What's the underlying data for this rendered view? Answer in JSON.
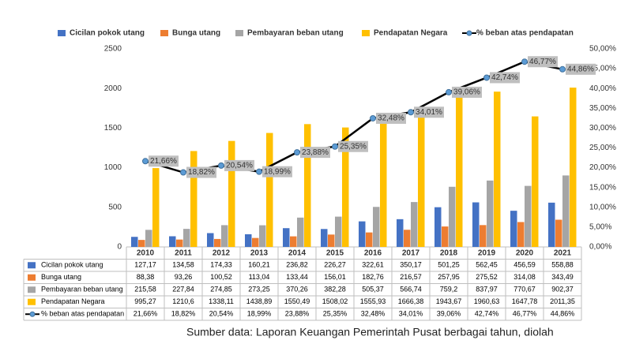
{
  "chart_data": {
    "type": "bar",
    "categories": [
      "2010",
      "2011",
      "2012",
      "2013",
      "2014",
      "2015",
      "2016",
      "2017",
      "2018",
      "2019",
      "2020",
      "2021"
    ],
    "series": [
      {
        "name": "Cicilan pokok utang",
        "color": "#4472c4",
        "values": [
          127.17,
          134.58,
          174.33,
          160.21,
          236.82,
          226.27,
          322.61,
          350.17,
          501.25,
          562.45,
          456.59,
          558.88
        ],
        "value_labels": [
          "127,17",
          "134,58",
          "174,33",
          "160,21",
          "236,82",
          "226,27",
          "322,61",
          "350,17",
          "501,25",
          "562,45",
          "456,59",
          "558,88"
        ]
      },
      {
        "name": "Bunga utang",
        "color": "#ed7d31",
        "values": [
          88.38,
          93.26,
          100.52,
          113.04,
          133.44,
          156.01,
          182.76,
          216.57,
          257.95,
          275.52,
          314.08,
          343.49
        ],
        "value_labels": [
          "88,38",
          "93,26",
          "100,52",
          "113,04",
          "133,44",
          "156,01",
          "182,76",
          "216,57",
          "257,95",
          "275,52",
          "314,08",
          "343,49"
        ]
      },
      {
        "name": "Pembayaran beban utang",
        "color": "#a5a5a5",
        "values": [
          215.58,
          227.84,
          274.85,
          273.25,
          370.26,
          382.28,
          505.37,
          566.74,
          759.2,
          837.97,
          770.67,
          902.37
        ],
        "value_labels": [
          "215,58",
          "227,84",
          "274,85",
          "273,25",
          "370,26",
          "382,28",
          "505,37",
          "566,74",
          "759,2",
          "837,97",
          "770,67",
          "902,37"
        ]
      },
      {
        "name": "Pendapatan Negara",
        "color": "#ffc000",
        "values": [
          995.27,
          1210.6,
          1338.11,
          1438.89,
          1550.49,
          1508.02,
          1555.93,
          1666.38,
          1943.67,
          1960.63,
          1647.78,
          2011.35
        ],
        "value_labels": [
          "995,27",
          "1210,6",
          "1338,11",
          "1438,89",
          "1550,49",
          "1508,02",
          "1555,93",
          "1666,38",
          "1943,67",
          "1960,63",
          "1647,78",
          "2011,35"
        ]
      },
      {
        "name": "% beban atas pendapatan",
        "type": "line",
        "axis": "y2",
        "color": "#000000",
        "marker_color": "#5b9bd5",
        "values": [
          21.66,
          18.82,
          20.54,
          18.99,
          23.88,
          25.35,
          32.48,
          34.01,
          39.06,
          42.74,
          46.77,
          44.86
        ],
        "value_labels": [
          "21,66%",
          "18,82%",
          "20,54%",
          "18,99%",
          "23,88%",
          "25,35%",
          "32,48%",
          "34,01%",
          "39,06%",
          "42,74%",
          "46,77%",
          "44,86%"
        ]
      }
    ],
    "ylim": [
      0,
      2500
    ],
    "yticks": [
      0,
      500,
      1000,
      1500,
      2000,
      2500
    ],
    "y2lim": [
      0,
      50
    ],
    "y2ticks": [
      {
        "value": 0,
        "label": "0,00%"
      },
      {
        "value": 5,
        "label": "5,00%"
      },
      {
        "value": 10,
        "label": "10,00%"
      },
      {
        "value": 15,
        "label": "15,00%"
      },
      {
        "value": 20,
        "label": "20,00%"
      },
      {
        "value": 25,
        "label": "25,00%"
      },
      {
        "value": 30,
        "label": "30,00%"
      },
      {
        "value": 35,
        "label": "35,00%"
      },
      {
        "value": 40,
        "label": "40,00%"
      },
      {
        "value": 45,
        "label": "45,00%"
      },
      {
        "value": 50,
        "label": "50,00%"
      }
    ],
    "grid": false,
    "legend": "top",
    "data_table": true,
    "source": "Sumber data: Laporan Keuangan Pemerintah Pusat berbagai tahun, diolah"
  }
}
